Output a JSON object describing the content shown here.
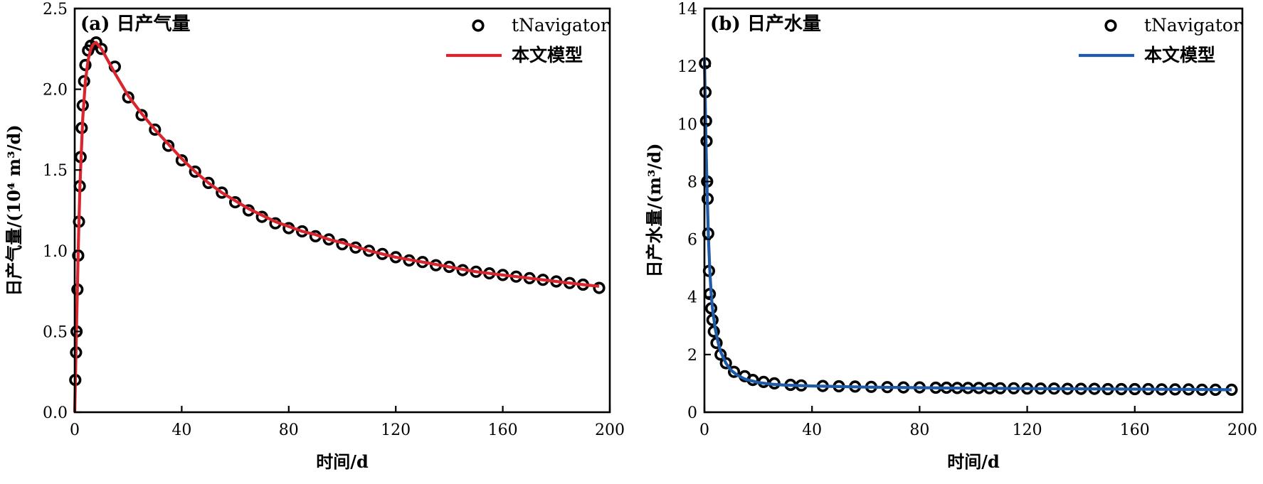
{
  "chart_data": [
    {
      "type": "scatter",
      "title": "(a) 日产气量",
      "xlabel": "时间/d",
      "ylabel": "日产气量/(10⁴ m³/d)",
      "xlim": [
        0,
        200
      ],
      "ylim": [
        0,
        2.5
      ],
      "xticks": [
        0,
        40,
        80,
        120,
        160,
        200
      ],
      "yticks": [
        0.0,
        0.5,
        1.0,
        1.5,
        2.0,
        2.5
      ],
      "xtick_labels": [
        "0",
        "40",
        "80",
        "120",
        "160",
        "200"
      ],
      "ytick_labels": [
        "0.0",
        "0.5",
        "1.0",
        "1.5",
        "2.0",
        "2.5"
      ],
      "legend_position": "top-right",
      "series": [
        {
          "name": "tNavigator",
          "kind": "markers",
          "color": "#000000",
          "x": [
            0.2,
            0.5,
            0.7,
            1.0,
            1.3,
            1.6,
            1.9,
            2.2,
            2.6,
            3.0,
            3.5,
            4.0,
            5.0,
            6.0,
            8.0,
            10,
            15,
            20,
            25,
            30,
            35,
            40,
            45,
            50,
            55,
            60,
            65,
            70,
            75,
            80,
            85,
            90,
            95,
            100,
            105,
            110,
            115,
            120,
            125,
            130,
            135,
            140,
            145,
            150,
            155,
            160,
            165,
            170,
            175,
            180,
            185,
            190,
            196
          ],
          "y": [
            0.2,
            0.37,
            0.5,
            0.76,
            0.97,
            1.18,
            1.4,
            1.58,
            1.76,
            1.9,
            2.05,
            2.15,
            2.24,
            2.27,
            2.29,
            2.25,
            2.14,
            1.95,
            1.84,
            1.75,
            1.65,
            1.56,
            1.49,
            1.42,
            1.36,
            1.3,
            1.25,
            1.21,
            1.17,
            1.14,
            1.12,
            1.09,
            1.07,
            1.04,
            1.02,
            1.0,
            0.98,
            0.96,
            0.94,
            0.93,
            0.91,
            0.9,
            0.88,
            0.87,
            0.86,
            0.85,
            0.84,
            0.83,
            0.82,
            0.81,
            0.8,
            0.79,
            0.77
          ]
        },
        {
          "name": "本文模型",
          "kind": "line",
          "color": "#d9262e",
          "x": [
            0,
            0.5,
            1,
            1.5,
            2,
            3,
            4,
            5,
            6,
            7,
            8,
            9,
            10,
            12,
            15,
            20,
            25,
            30,
            35,
            40,
            45,
            50,
            55,
            60,
            65,
            70,
            75,
            80,
            85,
            90,
            95,
            100,
            110,
            120,
            130,
            140,
            150,
            160,
            170,
            180,
            190,
            196
          ],
          "y": [
            0,
            0.4,
            0.78,
            1.12,
            1.42,
            1.82,
            2.05,
            2.18,
            2.25,
            2.28,
            2.29,
            2.27,
            2.25,
            2.19,
            2.1,
            1.96,
            1.85,
            1.75,
            1.66,
            1.57,
            1.49,
            1.42,
            1.36,
            1.31,
            1.26,
            1.22,
            1.18,
            1.15,
            1.12,
            1.1,
            1.07,
            1.05,
            1.0,
            0.96,
            0.93,
            0.9,
            0.87,
            0.85,
            0.83,
            0.81,
            0.79,
            0.78
          ]
        }
      ]
    },
    {
      "type": "scatter",
      "title": "(b) 日产水量",
      "xlabel": "时间/d",
      "ylabel": "日产水量/(m³/d)",
      "xlim": [
        0,
        200
      ],
      "ylim": [
        0,
        14
      ],
      "xticks": [
        0,
        40,
        80,
        120,
        160,
        200
      ],
      "yticks": [
        0,
        2,
        4,
        6,
        8,
        10,
        12,
        14
      ],
      "xtick_labels": [
        "0",
        "40",
        "80",
        "120",
        "160",
        "200"
      ],
      "ytick_labels": [
        "0",
        "2",
        "4",
        "6",
        "8",
        "10",
        "12",
        "14"
      ],
      "legend_position": "top-right",
      "series": [
        {
          "name": "tNavigator",
          "kind": "markers",
          "color": "#000000",
          "x": [
            0.2,
            0.4,
            0.6,
            0.8,
            1.0,
            1.2,
            1.4,
            1.7,
            2.0,
            2.5,
            3,
            3.5,
            4.5,
            6,
            8,
            11,
            15,
            18,
            22,
            26,
            32,
            36,
            44,
            50,
            56,
            62,
            68,
            74,
            80,
            86,
            90,
            94,
            98,
            102,
            106,
            110,
            115,
            120,
            125,
            130,
            135,
            140,
            145,
            150,
            155,
            160,
            165,
            170,
            175,
            180,
            185,
            190,
            196
          ],
          "y": [
            12.1,
            11.1,
            10.1,
            9.4,
            8.0,
            7.4,
            6.2,
            4.9,
            4.1,
            3.6,
            3.2,
            2.8,
            2.4,
            2.0,
            1.7,
            1.4,
            1.25,
            1.12,
            1.05,
            1.0,
            0.95,
            0.93,
            0.91,
            0.9,
            0.89,
            0.88,
            0.87,
            0.86,
            0.86,
            0.85,
            0.85,
            0.84,
            0.84,
            0.84,
            0.83,
            0.83,
            0.83,
            0.82,
            0.82,
            0.82,
            0.81,
            0.81,
            0.81,
            0.8,
            0.8,
            0.8,
            0.8,
            0.79,
            0.79,
            0.79,
            0.78,
            0.78,
            0.78
          ]
        },
        {
          "name": "本文模型",
          "kind": "line",
          "color": "#1f5ba6",
          "x": [
            0,
            0.3,
            0.6,
            1,
            1.5,
            2,
            2.5,
            3,
            4,
            5,
            6,
            8,
            10,
            12,
            15,
            20,
            25,
            30,
            40,
            50,
            60,
            80,
            100,
            120,
            140,
            160,
            180,
            196
          ],
          "y": [
            12.3,
            10.8,
            9.2,
            7.6,
            6.0,
            4.9,
            4.1,
            3.6,
            2.9,
            2.45,
            2.1,
            1.7,
            1.45,
            1.3,
            1.15,
            1.03,
            0.97,
            0.94,
            0.91,
            0.89,
            0.87,
            0.85,
            0.83,
            0.82,
            0.81,
            0.8,
            0.79,
            0.78
          ]
        }
      ]
    }
  ]
}
